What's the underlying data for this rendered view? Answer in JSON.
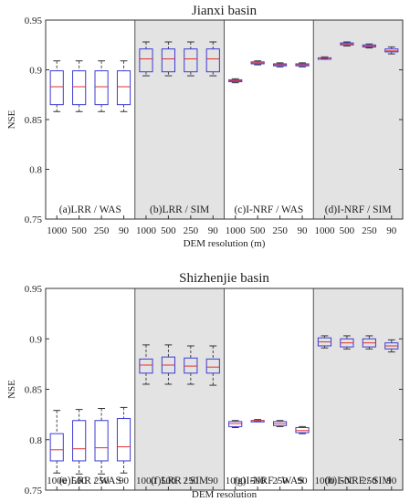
{
  "chart_data": [
    {
      "type": "box",
      "title": "Jianxi basin",
      "xlabel": "DEM resolution (m)",
      "ylabel": "NSE",
      "ylim": [
        0.75,
        0.95
      ],
      "yticks": [
        "0.75",
        "0.8",
        "0.85",
        "0.9",
        "0.95"
      ],
      "categories": [
        "1000",
        "500",
        "250",
        "90"
      ],
      "colors": {
        "box": "#3b3bd6",
        "median": "#e03030",
        "whisker": "#333333",
        "shade": "#e3e3e3"
      },
      "panels": [
        {
          "label": "(a)LRR / WAS",
          "shaded": false,
          "boxes": [
            {
              "min": 0.858,
              "q1": 0.865,
              "median": 0.883,
              "q3": 0.899,
              "max": 0.909
            },
            {
              "min": 0.858,
              "q1": 0.865,
              "median": 0.883,
              "q3": 0.899,
              "max": 0.909
            },
            {
              "min": 0.858,
              "q1": 0.865,
              "median": 0.883,
              "q3": 0.899,
              "max": 0.909
            },
            {
              "min": 0.858,
              "q1": 0.865,
              "median": 0.883,
              "q3": 0.899,
              "max": 0.909
            }
          ]
        },
        {
          "label": "(b)LRR / SIM",
          "shaded": true,
          "boxes": [
            {
              "min": 0.894,
              "q1": 0.898,
              "median": 0.911,
              "q3": 0.921,
              "max": 0.928
            },
            {
              "min": 0.894,
              "q1": 0.898,
              "median": 0.911,
              "q3": 0.921,
              "max": 0.928
            },
            {
              "min": 0.894,
              "q1": 0.898,
              "median": 0.911,
              "q3": 0.921,
              "max": 0.928
            },
            {
              "min": 0.894,
              "q1": 0.898,
              "median": 0.911,
              "q3": 0.921,
              "max": 0.928
            }
          ]
        },
        {
          "label": "(c)I-NRF / WAS",
          "shaded": false,
          "boxes": [
            {
              "min": 0.887,
              "q1": 0.888,
              "median": 0.889,
              "q3": 0.89,
              "max": 0.891
            },
            {
              "min": 0.905,
              "q1": 0.906,
              "median": 0.907,
              "q3": 0.908,
              "max": 0.909
            },
            {
              "min": 0.903,
              "q1": 0.904,
              "median": 0.905,
              "q3": 0.906,
              "max": 0.907
            },
            {
              "min": 0.903,
              "q1": 0.904,
              "median": 0.905,
              "q3": 0.906,
              "max": 0.907
            }
          ]
        },
        {
          "label": "(d)I-NRF / SIM",
          "shaded": true,
          "boxes": [
            {
              "min": 0.911,
              "q1": 0.911,
              "median": 0.912,
              "q3": 0.912,
              "max": 0.913
            },
            {
              "min": 0.924,
              "q1": 0.925,
              "median": 0.926,
              "q3": 0.927,
              "max": 0.928
            },
            {
              "min": 0.922,
              "q1": 0.923,
              "median": 0.924,
              "q3": 0.925,
              "max": 0.926
            },
            {
              "min": 0.916,
              "q1": 0.918,
              "median": 0.919,
              "q3": 0.921,
              "max": 0.923
            }
          ]
        }
      ]
    },
    {
      "type": "box",
      "title": "Shizhenjie basin",
      "xlabel": "DEM resolution",
      "ylabel": "NSE",
      "ylim": [
        0.75,
        0.95
      ],
      "yticks": [
        "0.75",
        "0.8",
        "0.85",
        "0.9",
        "0.95"
      ],
      "categories": [
        "1000",
        "500",
        "250",
        "90"
      ],
      "colors": {
        "box": "#3b3bd6",
        "median": "#e03030",
        "whisker": "#333333",
        "shade": "#e3e3e3"
      },
      "panels": [
        {
          "label": "(e)LRR / WAS",
          "shaded": false,
          "boxes": [
            {
              "min": 0.767,
              "q1": 0.779,
              "median": 0.79,
              "q3": 0.806,
              "max": 0.829
            },
            {
              "min": 0.766,
              "q1": 0.779,
              "median": 0.791,
              "q3": 0.819,
              "max": 0.83
            },
            {
              "min": 0.766,
              "q1": 0.779,
              "median": 0.792,
              "q3": 0.819,
              "max": 0.831
            },
            {
              "min": 0.767,
              "q1": 0.779,
              "median": 0.793,
              "q3": 0.821,
              "max": 0.832
            }
          ]
        },
        {
          "label": "(f)LRR / SIM",
          "shaded": true,
          "boxes": [
            {
              "min": 0.855,
              "q1": 0.866,
              "median": 0.874,
              "q3": 0.88,
              "max": 0.894
            },
            {
              "min": 0.855,
              "q1": 0.866,
              "median": 0.874,
              "q3": 0.882,
              "max": 0.894
            },
            {
              "min": 0.855,
              "q1": 0.866,
              "median": 0.873,
              "q3": 0.881,
              "max": 0.893
            },
            {
              "min": 0.854,
              "q1": 0.866,
              "median": 0.872,
              "q3": 0.88,
              "max": 0.893
            }
          ]
        },
        {
          "label": "(g)I-NRF / WAS",
          "shaded": false,
          "boxes": [
            {
              "min": 0.812,
              "q1": 0.813,
              "median": 0.816,
              "q3": 0.818,
              "max": 0.819
            },
            {
              "min": 0.818,
              "q1": 0.818,
              "median": 0.819,
              "q3": 0.819,
              "max": 0.82
            },
            {
              "min": 0.813,
              "q1": 0.814,
              "median": 0.816,
              "q3": 0.818,
              "max": 0.819
            },
            {
              "min": 0.806,
              "q1": 0.807,
              "median": 0.809,
              "q3": 0.812,
              "max": 0.813
            }
          ]
        },
        {
          "label": "(h)I-NRF / SIM",
          "shaded": true,
          "boxes": [
            {
              "min": 0.891,
              "q1": 0.893,
              "median": 0.897,
              "q3": 0.901,
              "max": 0.903
            },
            {
              "min": 0.89,
              "q1": 0.892,
              "median": 0.896,
              "q3": 0.9,
              "max": 0.903
            },
            {
              "min": 0.89,
              "q1": 0.892,
              "median": 0.896,
              "q3": 0.9,
              "max": 0.903
            },
            {
              "min": 0.887,
              "q1": 0.89,
              "median": 0.893,
              "q3": 0.896,
              "max": 0.899
            }
          ]
        }
      ]
    }
  ]
}
